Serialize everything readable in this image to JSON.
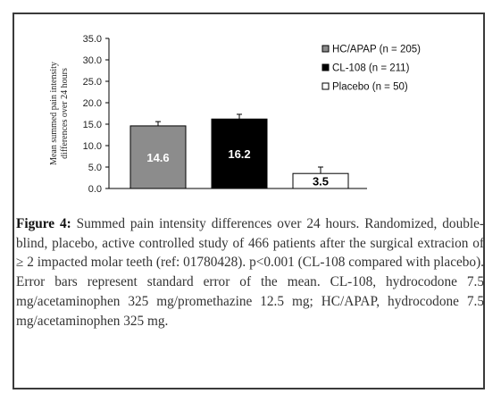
{
  "chart_data": {
    "type": "bar",
    "ylabel": "Mean summed pain intensity differences over 24 hours",
    "ylim": [
      0,
      35
    ],
    "yticks": [
      "0.0",
      "5.0",
      "10.0",
      "15.0",
      "20.0",
      "25.0",
      "30.0",
      "35.0"
    ],
    "grid": false,
    "legend_position": "right",
    "categories": [
      "HC/APAP (n = 205)",
      "CL-108 (n = 211)",
      "Placebo (n = 50)"
    ],
    "series": [
      {
        "name": "HC/APAP (n = 205)",
        "value": 14.6,
        "error": 1.0,
        "color": "#8c8c8c",
        "label": "14.6",
        "label_color": "#ffffff"
      },
      {
        "name": "CL-108 (n = 211)",
        "value": 16.2,
        "error": 1.1,
        "color": "#000000",
        "label": "16.2",
        "label_color": "#ffffff"
      },
      {
        "name": "Placebo (n = 50)",
        "value": 3.5,
        "error": 1.5,
        "color": "#ffffff",
        "label": "3.5",
        "label_color": "#000000"
      }
    ]
  },
  "caption": {
    "label": "Figure 4:",
    "text": " Summed pain intensity differences over 24 hours. Randomized, double-blind, placebo, active controlled study of 466 patients after the surgical extracion of ≥ 2 impacted molar teeth (ref: 01780428). p<0.001 (CL-108 compared with placebo). Error bars represent standard error of the mean. CL-108, hydrocodone 7.5 mg/acetaminophen 325 mg/promethazine 12.5 mg; HC/APAP, hydrocodone 7.5 mg/acetaminophen 325 mg."
  }
}
